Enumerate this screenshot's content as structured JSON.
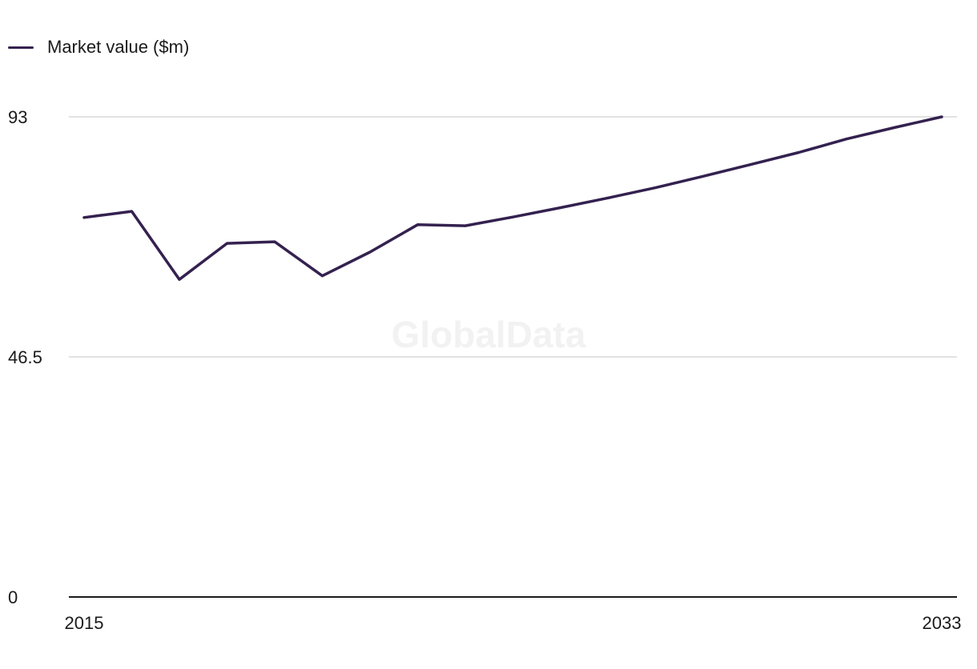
{
  "watermark": "GlobalData",
  "colors": {
    "series": "#34214f",
    "grid": "#d9d9d9",
    "axis": "#1a1a1a"
  },
  "chart_data": {
    "type": "line",
    "x": [
      2015,
      2016,
      2017,
      2018,
      2019,
      2020,
      2021,
      2022,
      2023,
      2024,
      2025,
      2026,
      2027,
      2028,
      2029,
      2030,
      2031,
      2032,
      2033
    ],
    "series": [
      {
        "name": "Market value ($m)",
        "values": [
          73.5,
          74.7,
          61.5,
          68.5,
          68.8,
          62.2,
          66.8,
          72.1,
          71.9,
          73.6,
          75.4,
          77.3,
          79.3,
          81.5,
          83.8,
          86.1,
          88.7,
          90.9,
          93.0
        ]
      }
    ],
    "ylim": [
      0,
      93
    ],
    "yticks": [
      "0",
      "46.5",
      "93"
    ],
    "xticks": [
      "2015",
      "2033"
    ],
    "grid": true,
    "legend": "top-left"
  }
}
